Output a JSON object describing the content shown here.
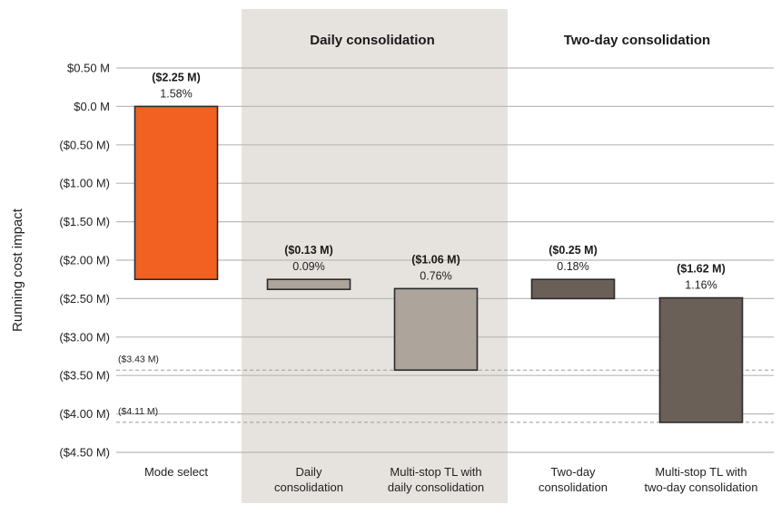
{
  "chart_data": {
    "type": "waterfall",
    "ylabel": "Running cost impact",
    "ylim": [
      -4.5,
      0.5
    ],
    "y_ticks": [
      0.5,
      0.0,
      -0.5,
      -1.0,
      -1.5,
      -2.0,
      -2.5,
      -3.0,
      -3.5,
      -4.0,
      -4.5
    ],
    "y_tick_labels": [
      "$0.50 M",
      "$0.0 M",
      "($0.50 M)",
      "($1.00 M)",
      "($1.50 M)",
      "($2.00 M)",
      "($2.50 M)",
      "($3.00 M)",
      "($3.50 M)",
      "($4.00 M)",
      "($4.50 M)"
    ],
    "grid": true,
    "groups": [
      {
        "title": "Daily consolidation",
        "categories": [
          1,
          2
        ],
        "shaded": true,
        "shade_color": "#e6e2de"
      },
      {
        "title": "Two-day consolidation",
        "categories": [
          3,
          4
        ],
        "shaded": false
      }
    ],
    "bars": [
      {
        "category": [
          "Mode select"
        ],
        "start": 0.0,
        "end": -2.25,
        "value_label": "($2.25 M)",
        "pct_label": "1.58%",
        "color": "#f26122"
      },
      {
        "category": [
          "Daily",
          "consolidation"
        ],
        "start": -2.25,
        "end": -2.38,
        "value_label": "($0.13 M)",
        "pct_label": "0.09%",
        "color": "#ada49b"
      },
      {
        "category": [
          "Multi-stop TL with",
          "daily consolidation"
        ],
        "start": -2.37,
        "end": -3.43,
        "value_label": "($1.06 M)",
        "pct_label": "0.76%",
        "color": "#ada49b"
      },
      {
        "category": [
          "Two-day",
          "consolidation"
        ],
        "start": -2.25,
        "end": -2.5,
        "value_label": "($0.25 M)",
        "pct_label": "0.18%",
        "color": "#6b6058"
      },
      {
        "category": [
          "Multi-stop TL with",
          "two-day consolidation"
        ],
        "start": -2.49,
        "end": -4.11,
        "value_label": "($1.62 M)",
        "pct_label": "1.16%",
        "color": "#6b6058"
      }
    ],
    "reference_lines": [
      {
        "value": -3.43,
        "label": "($3.43 M)"
      },
      {
        "value": -4.11,
        "label": "($4.11 M)"
      }
    ]
  }
}
